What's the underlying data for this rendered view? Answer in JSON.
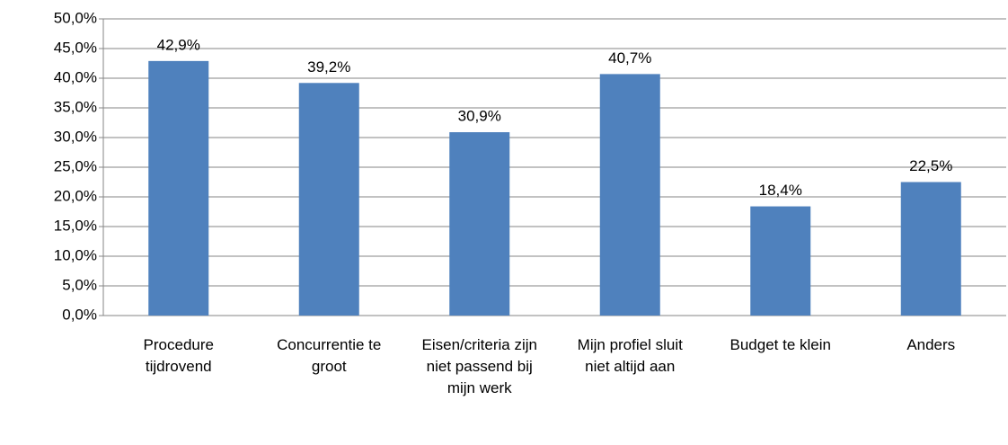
{
  "chart_data": {
    "type": "bar",
    "categories": [
      "Procedure tijdrovend",
      "Concurrentie te groot",
      "Eisen/criteria zijn niet passend bij mijn werk",
      "Mijn profiel sluit niet altijd aan",
      "Budget te klein",
      "Anders"
    ],
    "values": [
      42.9,
      39.2,
      30.9,
      40.7,
      18.4,
      22.5
    ],
    "value_labels": [
      "42,9%",
      "39,2%",
      "30,9%",
      "40,7%",
      "18,4%",
      "22,5%"
    ],
    "color": "#4f81bd",
    "ylim": [
      0,
      50
    ],
    "yticks": [
      {
        "value": 0,
        "label": "0,0%"
      },
      {
        "value": 5,
        "label": "5,0%"
      },
      {
        "value": 10,
        "label": "10,0%"
      },
      {
        "value": 15,
        "label": "15,0%"
      },
      {
        "value": 20,
        "label": "20,0%"
      },
      {
        "value": 25,
        "label": "25,0%"
      },
      {
        "value": 30,
        "label": "30,0%"
      },
      {
        "value": 35,
        "label": "35,0%"
      },
      {
        "value": 40,
        "label": "40,0%"
      },
      {
        "value": 45,
        "label": "45,0%"
      },
      {
        "value": 50,
        "label": "50,0%"
      }
    ],
    "grid": true
  }
}
